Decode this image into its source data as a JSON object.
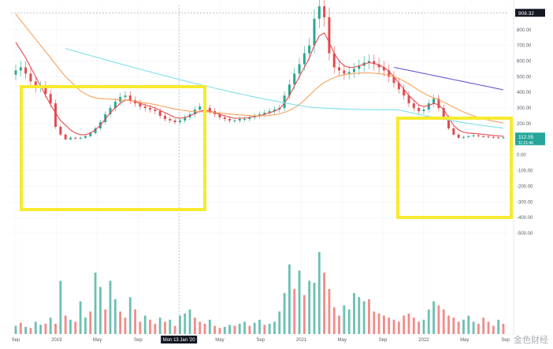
{
  "chart_data": {
    "type": "candlestick",
    "title": "",
    "y_axis": {
      "ticks": [
        800,
        700,
        600,
        500,
        400,
        300,
        200,
        100,
        0,
        -100,
        -200,
        -300,
        -400,
        -500
      ],
      "tick_labels": [
        "800.00",
        "700.00",
        "600.00",
        "500.00",
        "400.00",
        "300.00",
        "200.00",
        "100.00",
        "0.00",
        "-100.00",
        "-200.00",
        "-300.00",
        "-400.00",
        "-500.00"
      ],
      "ylim": [
        -520,
        960
      ]
    },
    "x_axis": {
      "tick_labels": [
        "Sep",
        "2019",
        "May",
        "Sep",
        "Mon 13 Jan '20",
        "May",
        "Sep",
        "2021",
        "May",
        "Sep",
        "2022",
        "May",
        "Sep"
      ],
      "highlight_label": "Mon 13 Jan '20"
    },
    "crosshair": {
      "price": 908.32,
      "label": "908.32",
      "date_label": "Mon 13 Jan '20"
    },
    "last_price": {
      "value": 112.55,
      "label": "112.55",
      "sublabel": "11:21:46"
    },
    "candles_close": [
      540,
      560,
      520,
      470,
      430,
      440,
      390,
      330,
      180,
      130,
      100,
      110,
      105,
      110,
      120,
      140,
      170,
      210,
      260,
      300,
      340,
      370,
      380,
      350,
      330,
      310,
      300,
      290,
      280,
      250,
      230,
      220,
      210,
      220,
      240,
      260,
      290,
      310,
      300,
      280,
      260,
      240,
      230,
      220,
      220,
      230,
      230,
      240,
      250,
      260,
      270,
      280,
      290,
      300,
      380,
      450,
      520,
      580,
      650,
      700,
      870,
      950,
      880,
      650,
      560,
      540,
      520,
      530,
      550,
      570,
      590,
      600,
      580,
      560,
      540,
      500,
      460,
      420,
      380,
      330,
      300,
      280,
      290,
      330,
      360,
      300,
      240,
      170,
      130,
      110,
      115,
      120,
      125,
      120,
      118,
      115,
      112,
      110,
      112.55
    ],
    "series": [
      {
        "name": "MA short",
        "color": "#e8484c",
        "values": [
          720,
          670,
          620,
          560,
          500,
          440,
          380,
          320,
          270,
          220,
          190,
          160,
          140,
          130,
          130,
          140,
          160,
          190,
          230,
          270,
          300,
          330,
          350,
          350,
          340,
          330,
          320,
          310,
          300,
          285,
          270,
          255,
          240,
          235,
          240,
          250,
          265,
          280,
          285,
          280,
          270,
          260,
          250,
          240,
          235,
          235,
          235,
          240,
          245,
          250,
          260,
          270,
          280,
          295,
          330,
          380,
          440,
          500,
          560,
          620,
          700,
          760,
          780,
          720,
          650,
          600,
          570,
          560,
          560,
          570,
          580,
          590,
          585,
          575,
          560,
          535,
          500,
          460,
          420,
          380,
          350,
          320,
          310,
          315,
          330,
          320,
          290,
          240,
          190,
          160,
          145,
          140,
          138,
          135,
          132,
          128,
          125,
          122,
          120
        ]
      },
      {
        "name": "MA mid",
        "color": "#f5a35c",
        "values": [
          900,
          860,
          820,
          780,
          740,
          700,
          660,
          620,
          580,
          540,
          500,
          470,
          440,
          410,
          390,
          375,
          365,
          360,
          358,
          357,
          355,
          352,
          350,
          347,
          343,
          338,
          333,
          328,
          322,
          315,
          308,
          300,
          294,
          288,
          284,
          280,
          278,
          277,
          276,
          274,
          271,
          268,
          265,
          262,
          259,
          256,
          254,
          252,
          250,
          250,
          251,
          253,
          257,
          263,
          272,
          285,
          302,
          323,
          350,
          380,
          412,
          440,
          463,
          480,
          494,
          505,
          513,
          518,
          521,
          523,
          524,
          524,
          522,
          519,
          515,
          509,
          500,
          488,
          472,
          454,
          434,
          413,
          394,
          378,
          365,
          352,
          338,
          322,
          305,
          289,
          275,
          262,
          250,
          240,
          231,
          223,
          216,
          210,
          205
        ]
      },
      {
        "name": "MA long",
        "color": "#7fe0ea",
        "values": [
          null,
          null,
          null,
          null,
          null,
          null,
          null,
          null,
          null,
          null,
          null,
          null,
          null,
          null,
          null,
          null,
          null,
          null,
          null,
          null,
          null,
          null,
          null,
          null,
          null,
          null,
          null,
          null,
          null,
          null,
          null,
          null,
          null,
          null,
          null,
          null,
          null,
          null,
          null,
          null,
          null,
          null,
          null,
          null,
          null,
          null,
          null,
          null,
          null,
          null,
          null,
          null,
          null,
          null,
          null,
          null,
          null,
          null,
          null,
          null,
          null,
          null,
          null,
          null,
          null,
          null,
          null,
          null,
          null,
          null,
          null,
          null,
          null,
          null,
          null,
          null,
          null,
          null,
          null,
          null,
          null,
          null,
          null,
          null,
          null,
          null,
          null,
          null,
          null,
          null,
          null,
          null,
          null,
          null,
          null,
          null,
          null,
          null,
          null
        ]
      },
      {
        "name": "MA very long",
        "color": "#6a5acd",
        "values": []
      }
    ],
    "volume": [
      40,
      55,
      35,
      30,
      60,
      45,
      50,
      80,
      50,
      260,
      90,
      70,
      60,
      160,
      80,
      110,
      300,
      230,
      120,
      260,
      170,
      110,
      80,
      180,
      120,
      60,
      90,
      70,
      50,
      80,
      60,
      70,
      40,
      90,
      100,
      120,
      80,
      60,
      50,
      70,
      40,
      30,
      35,
      45,
      40,
      50,
      60,
      40,
      55,
      70,
      45,
      50,
      60,
      110,
      200,
      340,
      220,
      310,
      190,
      260,
      250,
      400,
      300,
      220,
      130,
      90,
      140,
      120,
      200,
      180,
      160,
      170,
      110,
      100,
      90,
      80,
      70,
      60,
      90,
      100,
      80,
      60,
      70,
      120,
      160,
      140,
      120,
      90,
      80,
      60,
      70,
      90,
      60,
      50,
      80,
      60,
      40,
      70,
      50
    ],
    "volume_up": [
      true,
      false,
      true,
      false,
      true,
      true,
      false,
      true,
      false,
      true,
      false,
      true,
      false,
      true,
      true,
      false,
      true,
      true,
      false,
      true,
      true,
      false,
      false,
      true,
      false,
      false,
      true,
      false,
      false,
      true,
      false,
      true,
      false,
      true,
      true,
      true,
      false,
      false,
      false,
      true,
      false,
      false,
      true,
      true,
      false,
      true,
      true,
      false,
      true,
      true,
      false,
      true,
      true,
      true,
      true,
      true,
      false,
      true,
      false,
      true,
      true,
      true,
      false,
      false,
      false,
      false,
      true,
      true,
      true,
      true,
      true,
      false,
      false,
      false,
      false,
      false,
      false,
      false,
      false,
      false,
      false,
      false,
      true,
      true,
      true,
      false,
      false,
      false,
      false,
      false,
      true,
      true,
      true,
      false,
      false,
      false,
      false,
      true,
      false
    ],
    "highlight_boxes": [
      {
        "color": "#f7ea2e",
        "label": ""
      },
      {
        "color": "#f7ea2e",
        "label": ""
      }
    ],
    "grid": true
  },
  "watermark": "金色财经"
}
